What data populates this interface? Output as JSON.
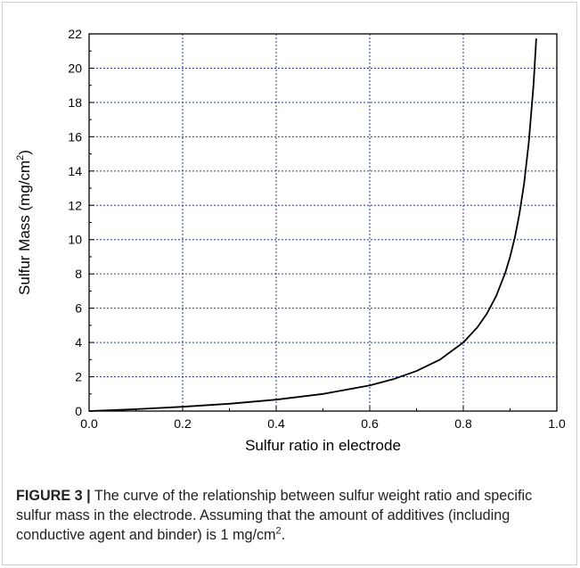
{
  "chart_data": {
    "type": "line",
    "xlabel": "Sulfur ratio in electrode",
    "ylabel_main": "Sulfur Mass (mg/cm",
    "ylabel_sup": "2",
    "ylabel_end": ")",
    "xlim": [
      0.0,
      1.0
    ],
    "ylim": [
      0,
      22
    ],
    "x_ticks": [
      0.0,
      0.2,
      0.4,
      0.6,
      0.8,
      1.0
    ],
    "x_tick_labels": [
      "0.0",
      "0.2",
      "0.4",
      "0.6",
      "0.8",
      "1.0"
    ],
    "y_ticks": [
      0,
      2,
      4,
      6,
      8,
      10,
      12,
      14,
      16,
      18,
      20,
      22
    ],
    "y_tick_labels": [
      "0",
      "2",
      "4",
      "6",
      "8",
      "10",
      "12",
      "14",
      "16",
      "18",
      "20",
      "22"
    ],
    "grid": true,
    "line_color": "#000000",
    "grid_color": "#2a3c8f",
    "series": [
      {
        "x": [
          0.0,
          0.1,
          0.2,
          0.3,
          0.4,
          0.5,
          0.6,
          0.65,
          0.7,
          0.75,
          0.8,
          0.83,
          0.85,
          0.87,
          0.89,
          0.9,
          0.91,
          0.92,
          0.93,
          0.94,
          0.95,
          0.956
        ],
        "values": [
          0.0,
          0.111,
          0.25,
          0.429,
          0.667,
          1.0,
          1.5,
          1.857,
          2.333,
          3.0,
          4.0,
          4.882,
          5.667,
          6.692,
          8.091,
          9.0,
          10.111,
          11.5,
          13.286,
          15.667,
          19.0,
          21.727
        ]
      }
    ]
  },
  "caption": {
    "label": "FIGURE 3 |",
    "text": " The curve of the relationship between sulfur weight ratio and specific sulfur mass in the electrode. Assuming that the amount of additives (including conductive agent and binder) is 1 mg/cm",
    "sup": "2",
    "end": "."
  }
}
